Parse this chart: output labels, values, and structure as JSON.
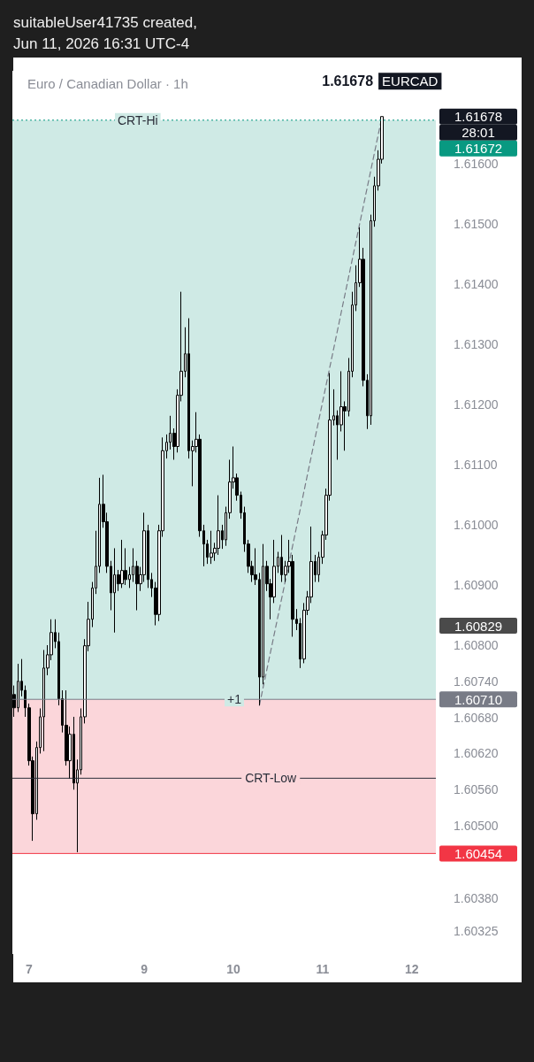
{
  "chart_data": {
    "type": "candlestick",
    "title": "Euro / Canadian Dollar · 1h",
    "subtitle": "suitableUser41735 created, Jun 11, 2026 16:31 UTC-4",
    "color": "#000000",
    "categories": [
      null,
      null,
      null,
      null,
      "7",
      null,
      null,
      null,
      null,
      null,
      null,
      null,
      null,
      null,
      null,
      null,
      null,
      null,
      null,
      null,
      null,
      null,
      null,
      null,
      null,
      null,
      null,
      null,
      null,
      null,
      null,
      null,
      null,
      null,
      null,
      "9",
      null,
      null,
      null,
      null,
      null,
      null,
      null,
      null,
      null,
      null,
      null,
      null,
      null,
      null,
      null,
      null,
      null,
      null,
      null,
      null,
      null,
      null,
      null,
      "10",
      null,
      null,
      null,
      null,
      null,
      null,
      null,
      null,
      null,
      null,
      null,
      null,
      null,
      null,
      null,
      null,
      null,
      null,
      null,
      null,
      null,
      null,
      null,
      "11",
      null,
      null,
      null,
      null,
      null,
      null,
      null,
      null,
      null,
      null,
      null,
      null,
      null,
      null,
      null,
      null,
      null,
      null,
      null,
      null,
      null,
      null,
      null,
      "12",
      null,
      null,
      null,
      null,
      null,
      null
    ],
    "ohlc": [
      [
        1.60718,
        1.60733,
        1.60681,
        1.60696
      ],
      [
        1.60696,
        1.60769,
        1.60689,
        1.6074
      ],
      [
        1.6074,
        1.60777,
        1.60715,
        1.60725
      ],
      [
        1.60725,
        1.60733,
        1.60681,
        1.60696
      ],
      [
        1.60696,
        1.60703,
        1.606,
        1.60608
      ],
      [
        1.60608,
        1.60615,
        1.60475,
        1.6052
      ],
      [
        1.6052,
        1.6064,
        1.6051,
        1.6063
      ],
      [
        1.6063,
        1.60695,
        1.6062,
        1.60681
      ],
      [
        1.60681,
        1.60792,
        1.60624,
        1.60762
      ],
      [
        1.60762,
        1.608,
        1.6075,
        1.60784
      ],
      [
        1.60784,
        1.60843,
        1.60775,
        1.60821
      ],
      [
        1.60821,
        1.60843,
        1.60795,
        1.60806
      ],
      [
        1.60806,
        1.60821,
        1.607,
        1.60711
      ],
      [
        1.60711,
        1.60725,
        1.60655,
        1.60667
      ],
      [
        1.60667,
        1.60725,
        1.606,
        1.60608
      ],
      [
        1.60608,
        1.60665,
        1.60578,
        1.60652
      ],
      [
        1.60652,
        1.60681,
        1.6056,
        1.60571
      ],
      [
        1.60571,
        1.6061,
        1.60456,
        1.60593
      ],
      [
        1.60593,
        1.60695,
        1.60585,
        1.60681
      ],
      [
        1.60681,
        1.6081,
        1.6067,
        1.60799
      ],
      [
        1.60799,
        1.60872,
        1.6079,
        1.60843
      ],
      [
        1.60843,
        1.60905,
        1.6083,
        1.60895
      ],
      [
        1.60895,
        1.6099,
        1.60885,
        1.60931
      ],
      [
        1.60931,
        1.61078,
        1.6092,
        1.61034
      ],
      [
        1.61034,
        1.61083,
        1.60995,
        1.61005
      ],
      [
        1.61005,
        1.6102,
        1.6092,
        1.60931
      ],
      [
        1.60931,
        1.6094,
        1.60858,
        1.60887
      ],
      [
        1.60887,
        1.60961,
        1.60821,
        1.60917
      ],
      [
        1.60917,
        1.60925,
        1.6089,
        1.60902
      ],
      [
        1.60902,
        1.60975,
        1.60895,
        1.60924
      ],
      [
        1.60924,
        1.60961,
        1.609,
        1.60909
      ],
      [
        1.60909,
        1.6093,
        1.60895,
        1.60917
      ],
      [
        1.60917,
        1.60961,
        1.60905,
        1.60931
      ],
      [
        1.60931,
        1.6094,
        1.60858,
        1.60902
      ],
      [
        1.60902,
        1.6093,
        1.6089,
        1.60917
      ],
      [
        1.60917,
        1.6102,
        1.60905,
        1.6099
      ],
      [
        1.6099,
        1.61,
        1.60895,
        1.60909
      ],
      [
        1.60909,
        1.6092,
        1.6088,
        1.60895
      ],
      [
        1.60895,
        1.60905,
        1.60833,
        1.60851
      ],
      [
        1.60851,
        1.61,
        1.6084,
        1.6099
      ],
      [
        1.6099,
        1.61145,
        1.6098,
        1.61123
      ],
      [
        1.61123,
        1.6115,
        1.6111,
        1.61137
      ],
      [
        1.61137,
        1.61181,
        1.61125,
        1.61152
      ],
      [
        1.61152,
        1.6116,
        1.61108,
        1.6113
      ],
      [
        1.6113,
        1.61225,
        1.6112,
        1.61215
      ],
      [
        1.61215,
        1.61387,
        1.61205,
        1.61255
      ],
      [
        1.61255,
        1.61328,
        1.61245,
        1.61284
      ],
      [
        1.61284,
        1.61343,
        1.6111,
        1.61123
      ],
      [
        1.61123,
        1.6114,
        1.61064,
        1.6113
      ],
      [
        1.6113,
        1.61187,
        1.6112,
        1.61142
      ],
      [
        1.61142,
        1.6115,
        1.6098,
        1.6099
      ],
      [
        1.6099,
        1.61,
        1.60931,
        1.60968
      ],
      [
        1.60968,
        1.60975,
        1.60935,
        1.60946
      ],
      [
        1.60946,
        1.6099,
        1.60935,
        1.60953
      ],
      [
        1.60953,
        1.6097,
        1.6094,
        1.60961
      ],
      [
        1.60961,
        1.61049,
        1.6095,
        1.6099
      ],
      [
        1.6099,
        1.61,
        1.6096,
        1.60975
      ],
      [
        1.60975,
        1.6103,
        1.60965,
        1.6102
      ],
      [
        1.6102,
        1.61108,
        1.6101,
        1.61071
      ],
      [
        1.61071,
        1.6113,
        1.6106,
        1.61078
      ],
      [
        1.61078,
        1.61085,
        1.6104,
        1.61049
      ],
      [
        1.61049,
        1.61055,
        1.6101,
        1.6102
      ],
      [
        1.6102,
        1.6103,
        1.60955,
        1.60968
      ],
      [
        1.60968,
        1.60975,
        1.6092,
        1.60931
      ],
      [
        1.60931,
        1.6094,
        1.60905,
        1.60917
      ],
      [
        1.60917,
        1.60961,
        1.609,
        1.60909
      ],
      [
        1.60909,
        1.6092,
        1.607,
        1.60747
      ],
      [
        1.60747,
        1.60968,
        1.60735,
        1.60931
      ],
      [
        1.60931,
        1.6094,
        1.6089,
        1.60902
      ],
      [
        1.60902,
        1.6091,
        1.60843,
        1.6088
      ],
      [
        1.6088,
        1.60975,
        1.6087,
        1.60931
      ],
      [
        1.60931,
        1.60955,
        1.6092,
        1.60946
      ],
      [
        1.60946,
        1.60983,
        1.60905,
        1.60917
      ],
      [
        1.60917,
        1.6094,
        1.60905,
        1.60931
      ],
      [
        1.60931,
        1.60975,
        1.6092,
        1.60939
      ],
      [
        1.60939,
        1.6095,
        1.60814,
        1.60843
      ],
      [
        1.60843,
        1.6086,
        1.60825,
        1.60836
      ],
      [
        1.60836,
        1.60845,
        1.60762,
        1.60777
      ],
      [
        1.60777,
        1.6087,
        1.6077,
        1.60858
      ],
      [
        1.60858,
        1.6089,
        1.6085,
        1.6088
      ],
      [
        1.6088,
        1.60997,
        1.6087,
        1.60939
      ],
      [
        1.60939,
        1.6095,
        1.60905,
        1.60917
      ],
      [
        1.60917,
        1.60955,
        1.60905,
        1.60946
      ],
      [
        1.60946,
        1.6099,
        1.60935,
        1.60983
      ],
      [
        1.60983,
        1.6106,
        1.60975,
        1.61049
      ],
      [
        1.61049,
        1.61252,
        1.6104,
        1.61174
      ],
      [
        1.61174,
        1.61225,
        1.61165,
        1.61181
      ],
      [
        1.61181,
        1.6119,
        1.61108,
        1.61166
      ],
      [
        1.61166,
        1.61255,
        1.61155,
        1.61196
      ],
      [
        1.61196,
        1.61205,
        1.61123,
        1.61189
      ],
      [
        1.61189,
        1.61277,
        1.6118,
        1.61255
      ],
      [
        1.61255,
        1.61387,
        1.61245,
        1.61365
      ],
      [
        1.61365,
        1.61431,
        1.61355,
        1.61402
      ],
      [
        1.61402,
        1.61494,
        1.61395,
        1.61441
      ],
      [
        1.61441,
        1.6146,
        1.6123,
        1.6124
      ],
      [
        1.6124,
        1.6125,
        1.61159,
        1.61181
      ],
      [
        1.61181,
        1.61515,
        1.61166,
        1.61505
      ],
      [
        1.61505,
        1.61578,
        1.61495,
        1.61563
      ],
      [
        1.61563,
        1.61622,
        1.61555,
        1.61607
      ],
      [
        1.61607,
        1.61678,
        1.616,
        1.61678
      ],
      null,
      null,
      null,
      null,
      null,
      null,
      null,
      null,
      null,
      null,
      null,
      null,
      null,
      null
    ],
    "series": [
      {
        "type": "line",
        "color": "#787b86",
        "line_style": "dashed",
        "marker": "none",
        "values": [
          null,
          null,
          null,
          null,
          null,
          null,
          null,
          null,
          null,
          null,
          null,
          null,
          null,
          null,
          null,
          null,
          null,
          null,
          null,
          null,
          null,
          null,
          null,
          null,
          null,
          null,
          null,
          null,
          null,
          null,
          null,
          null,
          null,
          null,
          null,
          null,
          null,
          null,
          null,
          null,
          null,
          null,
          null,
          null,
          null,
          null,
          null,
          null,
          null,
          null,
          null,
          null,
          null,
          null,
          null,
          null,
          null,
          null,
          null,
          null,
          null,
          null,
          null,
          null,
          null,
          null,
          1.607,
          null,
          null,
          null,
          null,
          null,
          null,
          null,
          null,
          null,
          null,
          null,
          null,
          null,
          null,
          null,
          null,
          null,
          null,
          null,
          null,
          null,
          null,
          null,
          null,
          null,
          null,
          null,
          null,
          null,
          null,
          null,
          null,
          1.61678,
          null,
          null,
          null,
          null,
          null,
          null,
          null,
          null,
          null,
          null,
          null,
          null,
          null,
          null
        ]
      }
    ],
    "ylim": [
      1.60287,
      1.61754
    ],
    "yticks": [
      {
        "value": 1.616,
        "label": "1.61600"
      },
      {
        "value": 1.615,
        "label": "1.61500"
      },
      {
        "value": 1.614,
        "label": "1.61400"
      },
      {
        "value": 1.613,
        "label": "1.61300"
      },
      {
        "value": 1.612,
        "label": "1.61200"
      },
      {
        "value": 1.611,
        "label": "1.61100"
      },
      {
        "value": 1.61,
        "label": "1.61000"
      },
      {
        "value": 1.609,
        "label": "1.60900"
      },
      {
        "value": 1.608,
        "label": "1.60800"
      },
      {
        "value": 1.6074,
        "label": "1.60740"
      },
      {
        "value": 1.6068,
        "label": "1.60680"
      },
      {
        "value": 1.6062,
        "label": "1.60620"
      },
      {
        "value": 1.6056,
        "label": "1.60560"
      },
      {
        "value": 1.605,
        "label": "1.60500"
      },
      {
        "value": 1.6038,
        "label": "1.60380"
      },
      1.60325
    ],
    "bands": [
      {
        "axis": "y",
        "from": 1.6071,
        "to": 1.61672,
        "color": "#cfeae5"
      },
      {
        "axis": "y",
        "from": 1.60454,
        "to": 1.6071,
        "color": "#fbd6da"
      }
    ],
    "ref_lines": [
      {
        "axis": "y",
        "value": 1.61672,
        "label": "1.61672",
        "color": "#089981",
        "line_style": "dotted"
      },
      {
        "axis": "y",
        "value": 1.6071,
        "label": "1.60710",
        "color": "#787b86",
        "line_style": "solid"
      },
      {
        "axis": "y",
        "value": 1.60579,
        "label": "CRT-Low",
        "line_style": "solid"
      },
      {
        "axis": "y",
        "value": 1.60454,
        "label": "1.60454",
        "color": "#f23645",
        "line_style": "solid"
      }
    ],
    "annotations": [
      {
        "text": "CRT-Hi",
        "y": 1.61672
      },
      {
        "text": "+1",
        "y": 1.6071
      },
      "1.61678",
      "28:01",
      "1.60829",
      "EURCAD",
      "1.61678"
    ]
  }
}
